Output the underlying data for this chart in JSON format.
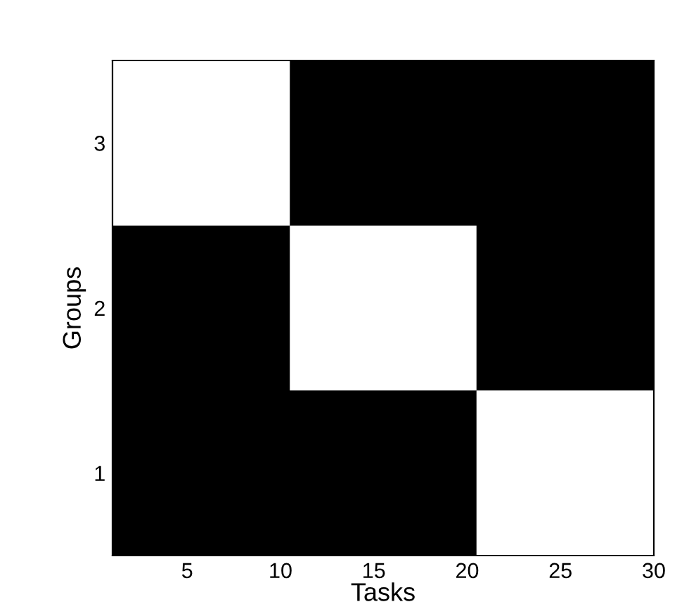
{
  "chart_data": {
    "type": "bar",
    "orientation": "horizontal",
    "xlabel": "Tasks",
    "ylabel": "Groups",
    "categories": [
      "3",
      "2",
      "1"
    ],
    "base": [
      0.5,
      10.5,
      20.5
    ],
    "values": [
      10,
      10,
      10
    ],
    "color": "#ffffff",
    "xlim": [
      1,
      30
    ],
    "xticks": [
      5,
      10,
      15,
      20,
      25,
      30
    ]
  }
}
